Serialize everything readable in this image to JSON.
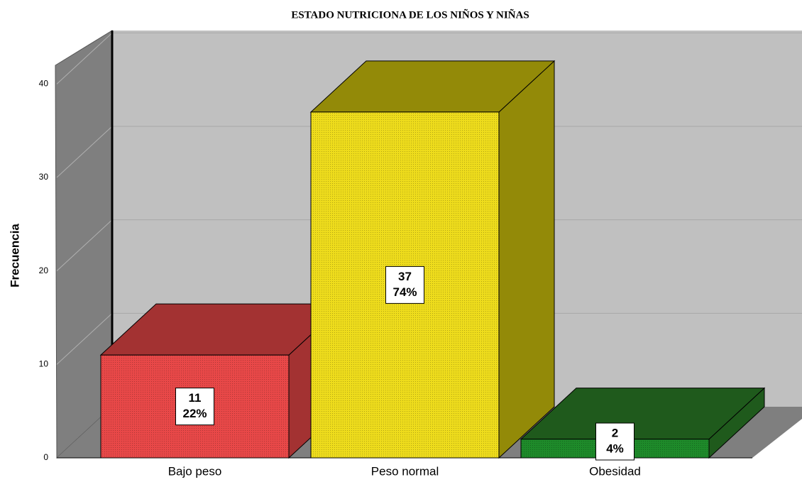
{
  "chart_data": {
    "type": "bar3d",
    "title": "ESTADO NUTRICIONA DE LOS NIÑOS Y NIÑAS",
    "y_label": "Frecuencia",
    "categories": [
      "Bajo peso",
      "Peso normal",
      "Obesidad"
    ],
    "values": [
      11,
      37,
      2
    ],
    "percentages": [
      22,
      74,
      4
    ],
    "percentage_labels": [
      "22%",
      "74%",
      "4%"
    ],
    "colors": [
      "#e84848",
      "#eedc1c",
      "#1e8a2a"
    ],
    "top_colors": [
      "#a33232",
      "#938a08",
      "#1f5a1c"
    ],
    "ylim": [
      0,
      42
    ],
    "yticks": [
      0,
      10,
      20,
      30,
      40
    ],
    "grid": true
  }
}
